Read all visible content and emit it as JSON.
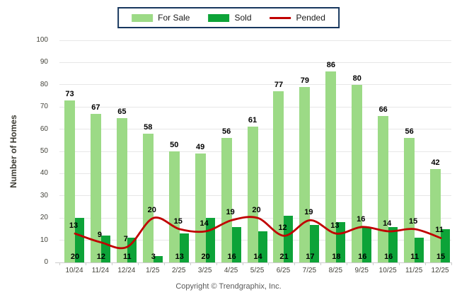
{
  "legend": {
    "border_color": "#17375E"
  },
  "footer": {
    "copyright": "Copyright © Trendgraphix, Inc."
  },
  "chart_data": {
    "type": "bar",
    "subtype": "grouped bars with smoothed overlay line",
    "title": "",
    "xlabel": "",
    "ylabel": "Number of Homes",
    "ylim": [
      0,
      100
    ],
    "y_ticks": [
      0,
      10,
      20,
      30,
      40,
      50,
      60,
      70,
      80,
      90,
      100
    ],
    "grid": true,
    "legend_position": "top-center",
    "categories": [
      "10/24",
      "11/24",
      "12/24",
      "1/25",
      "2/25",
      "3/25",
      "4/25",
      "5/25",
      "6/25",
      "7/25",
      "8/25",
      "9/25",
      "10/25",
      "11/25",
      "12/25"
    ],
    "series": [
      {
        "name": "For Sale",
        "type": "bar",
        "color": "#9CDA86",
        "values": [
          73,
          67,
          65,
          58,
          50,
          49,
          56,
          61,
          77,
          79,
          86,
          80,
          66,
          56,
          42
        ]
      },
      {
        "name": "Sold",
        "type": "bar",
        "color": "#0DA338",
        "values": [
          20,
          12,
          11,
          3,
          13,
          20,
          16,
          14,
          21,
          17,
          18,
          16,
          16,
          11,
          15
        ]
      },
      {
        "name": "Pended",
        "type": "line",
        "color": "#C00000",
        "values": [
          13,
          9,
          7,
          20,
          15,
          14,
          19,
          20,
          12,
          19,
          13,
          16,
          14,
          15,
          11
        ]
      }
    ],
    "colors": {
      "gridline": "#e7e7e7",
      "axis_line": "#cccccc",
      "tick_text": "#45443c",
      "value_text": "#000000"
    }
  }
}
